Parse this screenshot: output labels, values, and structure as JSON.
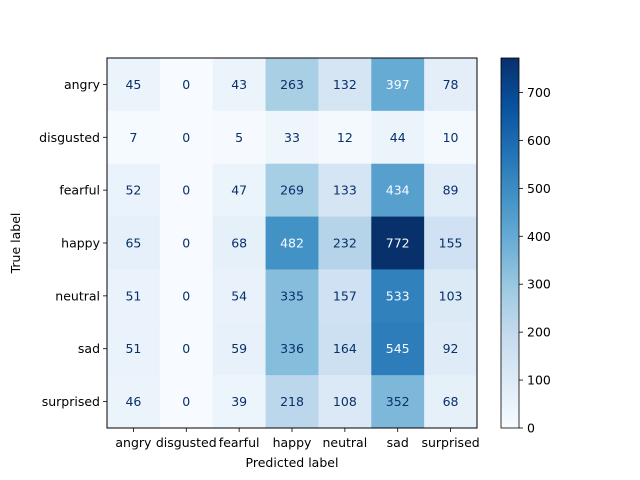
{
  "chart_data": {
    "type": "heatmap",
    "xlabel": "Predicted label",
    "ylabel": "True label",
    "x_categories": [
      "angry",
      "disgusted",
      "fearful",
      "happy",
      "neutral",
      "sad",
      "surprised"
    ],
    "y_categories": [
      "angry",
      "disgusted",
      "fearful",
      "happy",
      "neutral",
      "sad",
      "surprised"
    ],
    "values": [
      [
        45,
        0,
        43,
        263,
        132,
        397,
        78
      ],
      [
        7,
        0,
        5,
        33,
        12,
        44,
        10
      ],
      [
        52,
        0,
        47,
        269,
        133,
        434,
        89
      ],
      [
        65,
        0,
        68,
        482,
        232,
        772,
        155
      ],
      [
        51,
        0,
        54,
        335,
        157,
        533,
        103
      ],
      [
        51,
        0,
        59,
        336,
        164,
        545,
        92
      ],
      [
        46,
        0,
        39,
        218,
        108,
        352,
        68
      ]
    ],
    "colormap": "Blues",
    "colorbar": {
      "range": [
        0,
        772
      ],
      "ticks": [
        0,
        100,
        200,
        300,
        400,
        500,
        600,
        700
      ]
    }
  }
}
